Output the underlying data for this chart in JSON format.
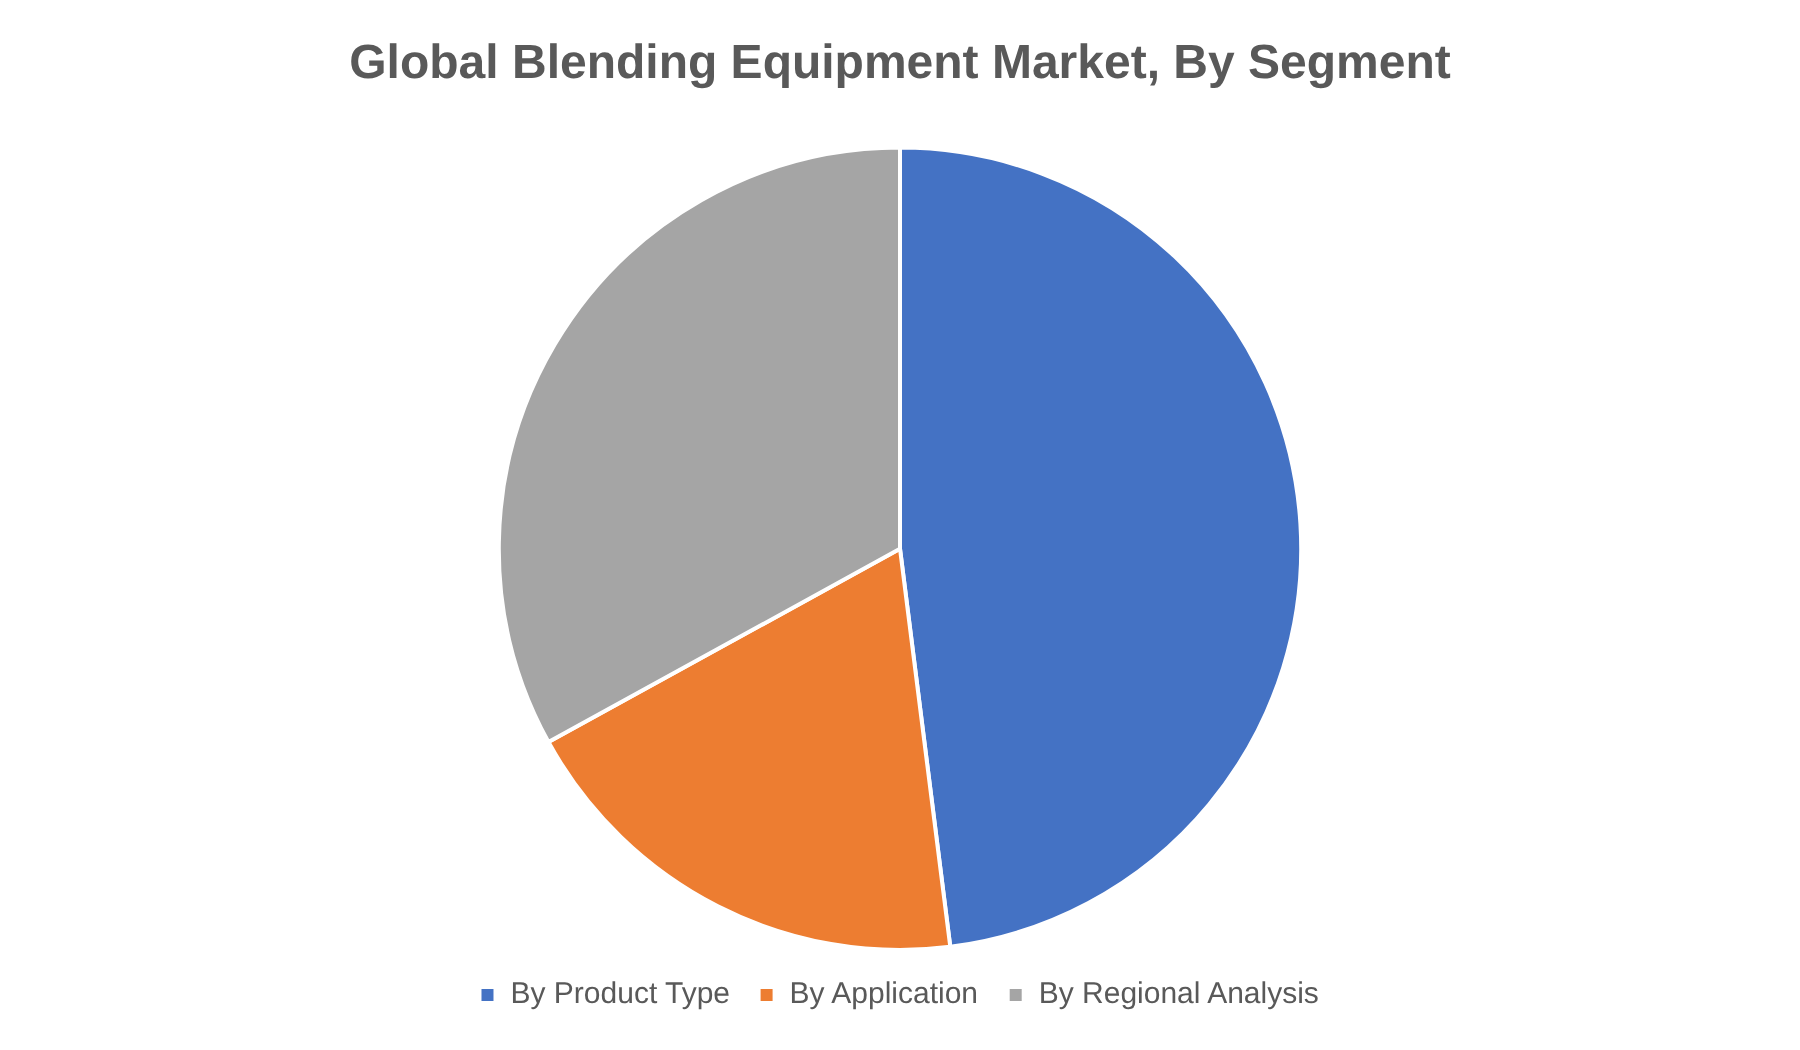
{
  "chart_data": {
    "type": "pie",
    "title": "Global Blending Equipment Market, By Segment",
    "categories": [
      "By Product Type",
      "By Application",
      "By Regional Analysis"
    ],
    "values": [
      48,
      19,
      33
    ],
    "colors": [
      "#4472c4",
      "#ed7d31",
      "#a5a5a5"
    ],
    "legend": "bottom"
  }
}
